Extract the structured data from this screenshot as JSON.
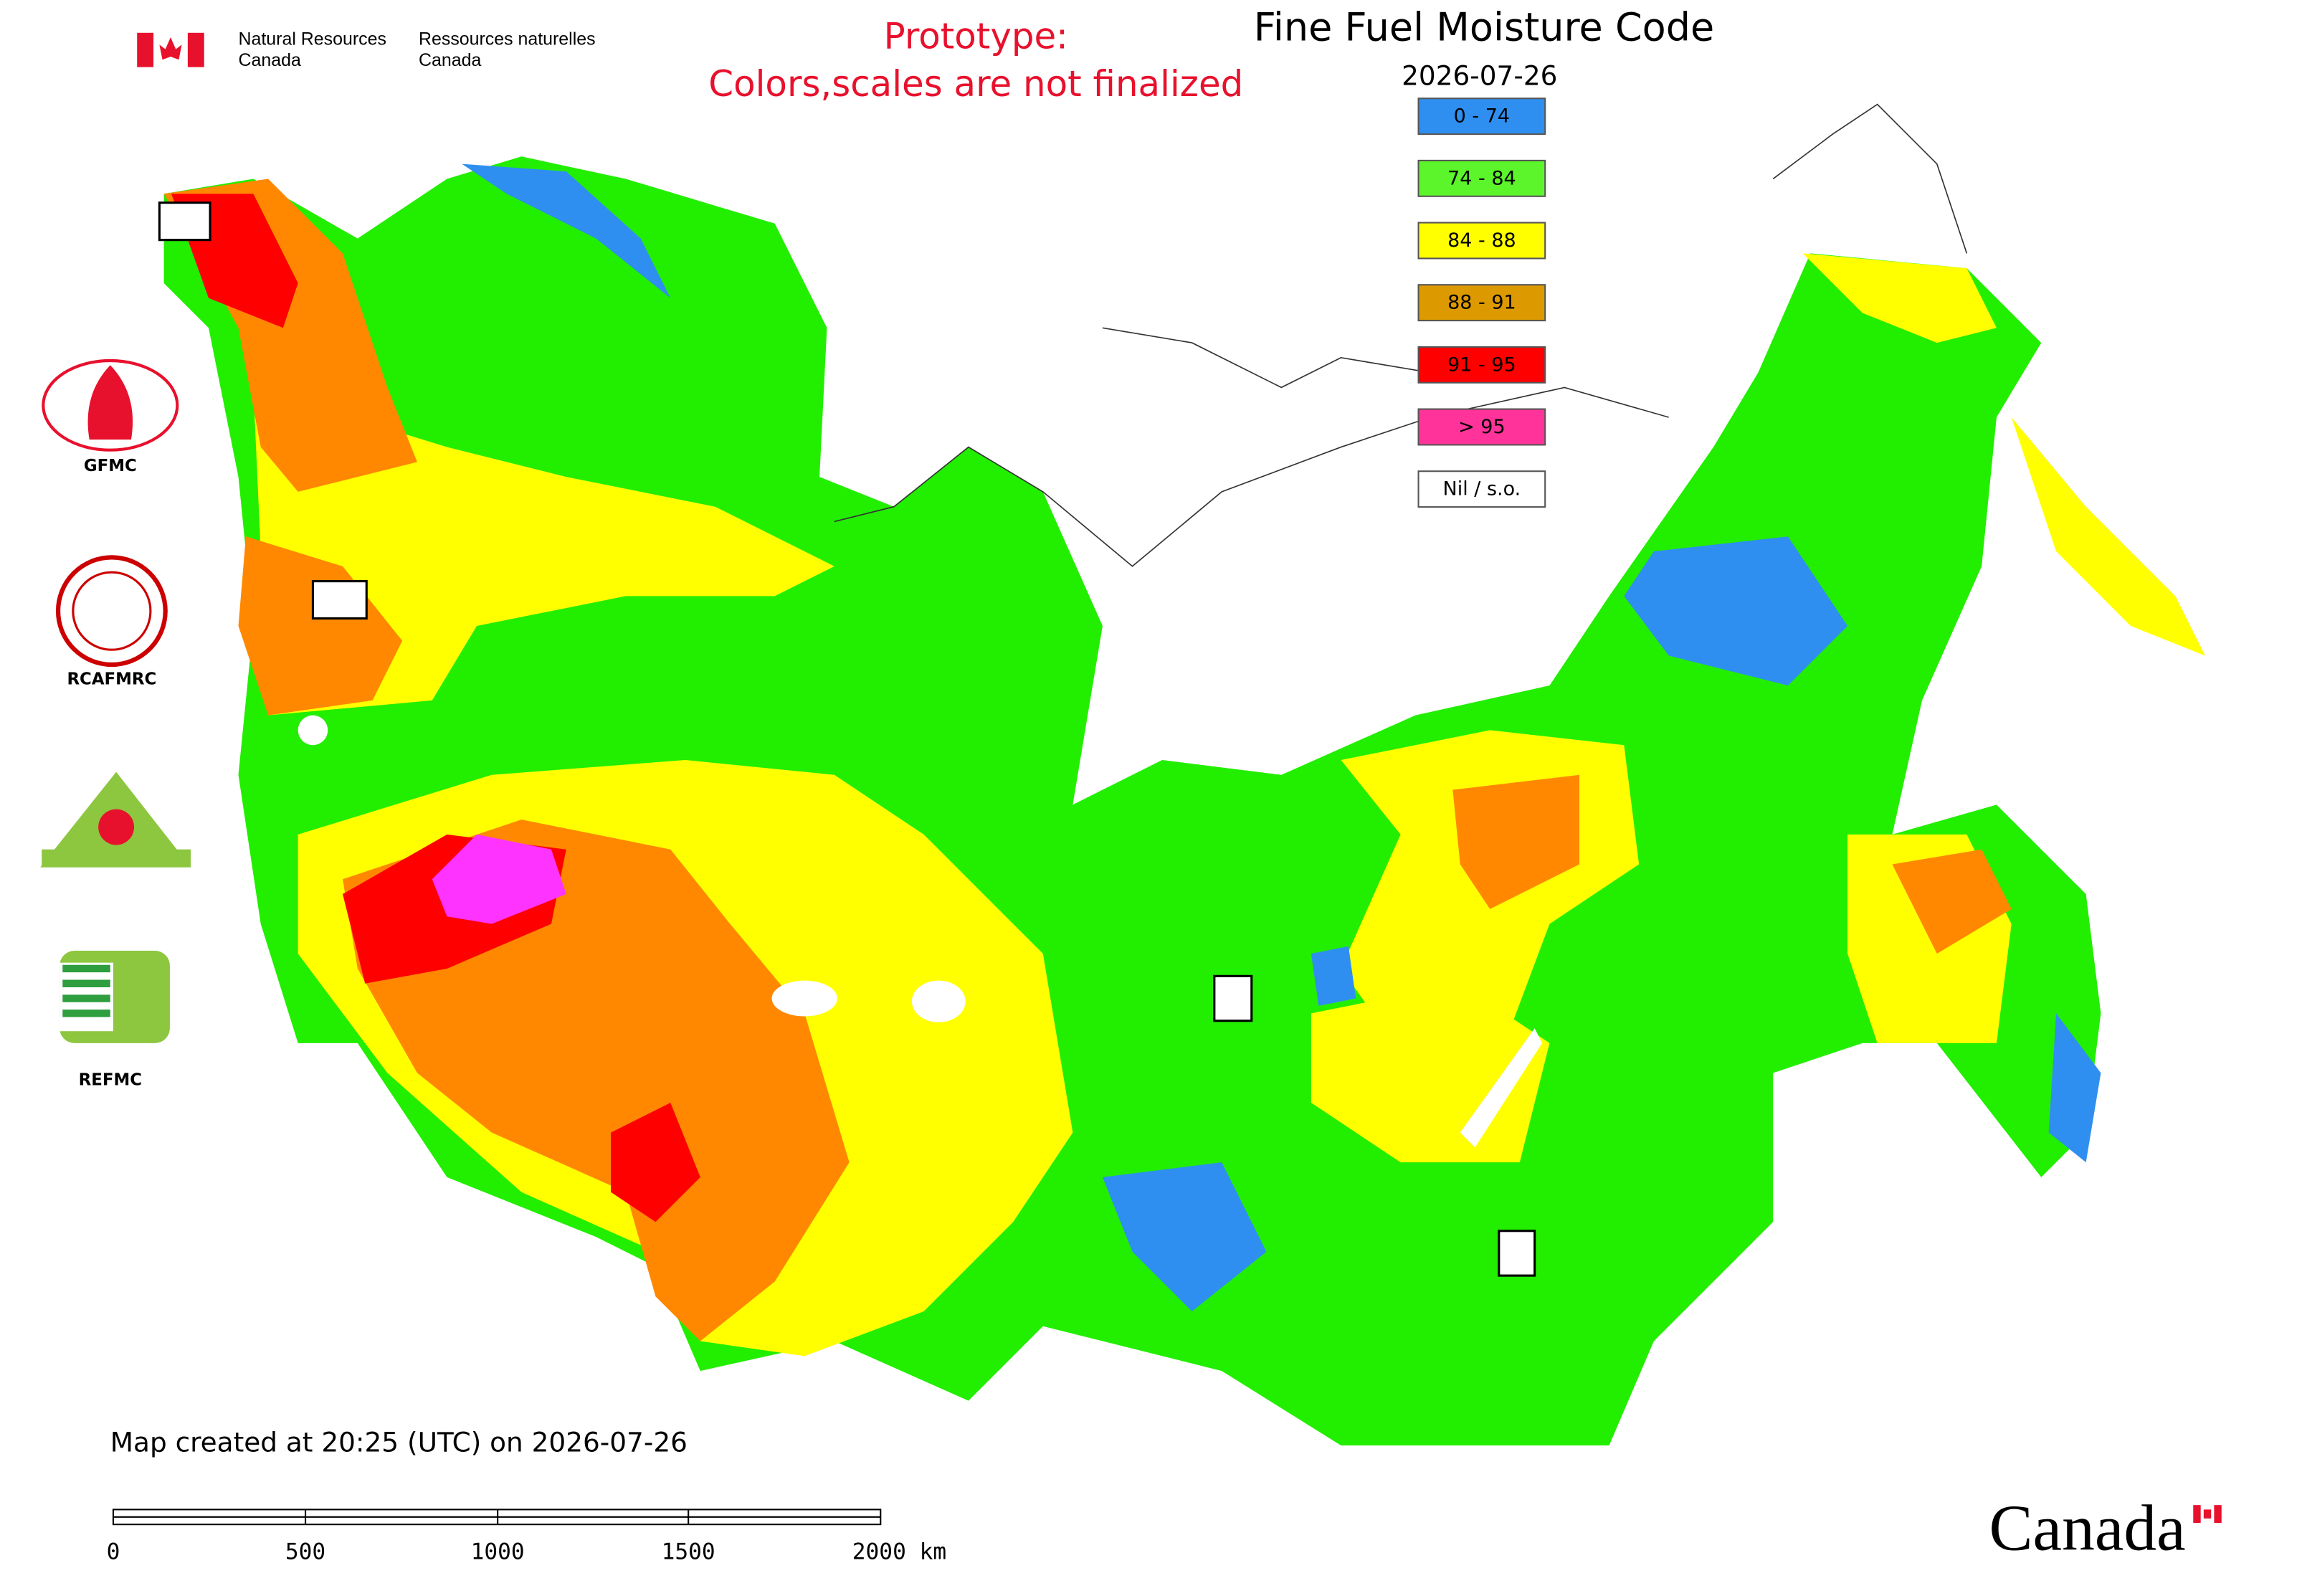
{
  "header": {
    "department_en": [
      "Natural Resources",
      "Canada"
    ],
    "department_fr": [
      "Ressources naturelles",
      "Canada"
    ],
    "notice": [
      "Prototype:",
      "Colors,scales are not finalized"
    ],
    "title": "Fine Fuel Moisture Code",
    "date": "2026-07-26"
  },
  "legend": [
    {
      "label": "0 - 74",
      "color": "#2f8ff0"
    },
    {
      "label": "74 - 84",
      "color": "#5cf52c"
    },
    {
      "label": "84 - 88",
      "color": "#ffff00"
    },
    {
      "label": "88 - 91",
      "color": "#dc9a00"
    },
    {
      "label": "91 - 95",
      "color": "#ff0000"
    },
    {
      "label": "> 95",
      "color": "#ff3399"
    },
    {
      "label": "Nil / s.o.",
      "color": "#ffffff"
    }
  ],
  "logos": [
    "GFMC",
    "RCAFMRC",
    "REFMC"
  ],
  "footer": {
    "created": "Map created at 20:25 (UTC) on 2026-07-26",
    "scale_labels": [
      "0",
      "500",
      "1000",
      "1500",
      "2000 km"
    ],
    "wordmark": "Canada"
  }
}
